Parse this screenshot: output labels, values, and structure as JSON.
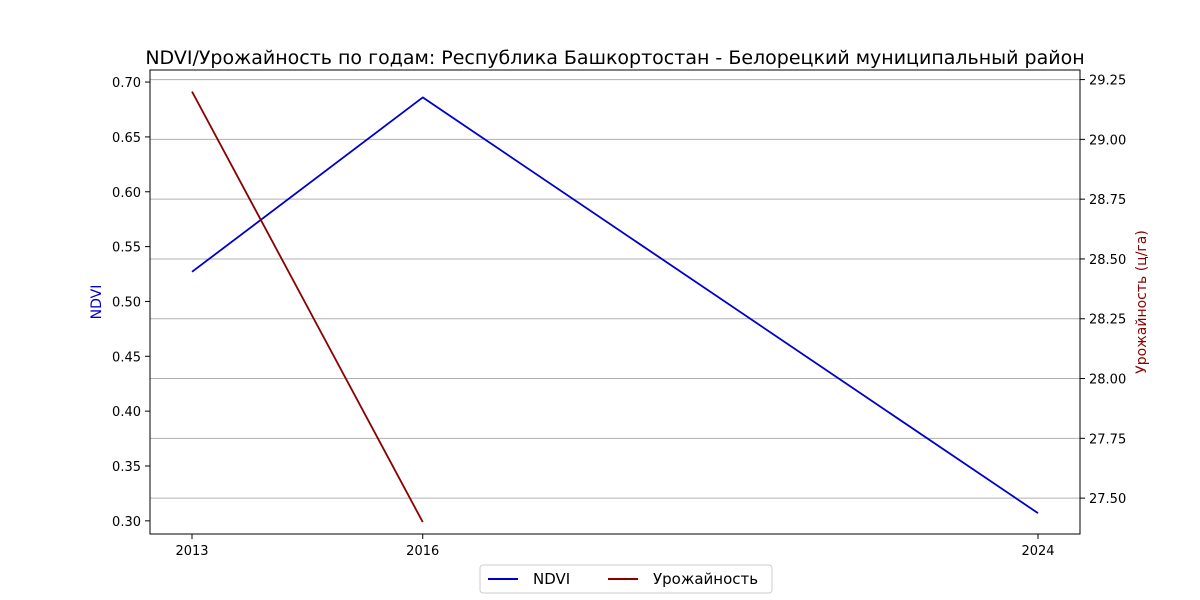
{
  "chart_data": {
    "type": "line",
    "title": "NDVI/Урожайность по годам: Республика Башкортостан - Белорецкий муниципальный район",
    "x": [
      "2013",
      "2016",
      "2024"
    ],
    "ylabel_left": "NDVI",
    "ylabel_right": "Урожайность (ц/га)",
    "ylim_left": [
      0.288,
      0.711
    ],
    "ylim_right": [
      27.35,
      29.29
    ],
    "yticks_left": [
      "0.30",
      "0.35",
      "0.40",
      "0.45",
      "0.50",
      "0.55",
      "0.60",
      "0.65",
      "0.70"
    ],
    "yticks_right": [
      "27.50",
      "27.75",
      "28.00",
      "28.25",
      "28.50",
      "28.75",
      "29.00",
      "29.25"
    ],
    "grid": "horizontal (right axis)",
    "legend_position": "bottom-center",
    "series": [
      {
        "name": "NDVI",
        "axis": "left",
        "color": "#0000cd",
        "points": [
          {
            "x": "2013",
            "y": 0.527
          },
          {
            "x": "2016",
            "y": 0.686
          },
          {
            "x": "2024",
            "y": 0.307
          }
        ]
      },
      {
        "name": "Урожайность",
        "axis": "right",
        "color": "#8b0000",
        "points": [
          {
            "x": "2013",
            "y": 29.2
          },
          {
            "x": "2016",
            "y": 27.4
          }
        ]
      }
    ]
  }
}
